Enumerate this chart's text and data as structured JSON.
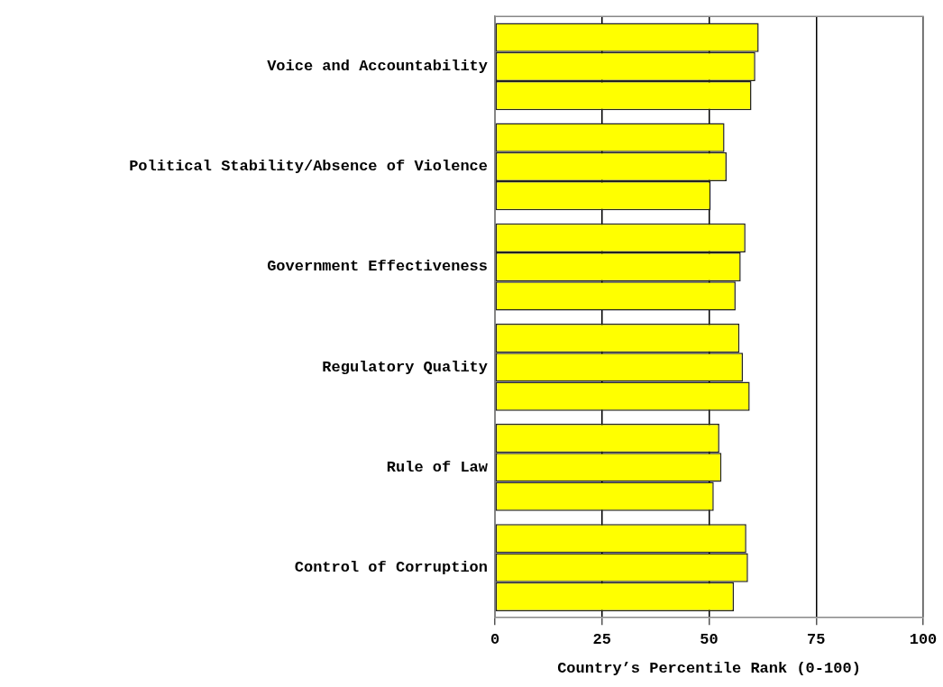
{
  "chart_data": {
    "type": "bar",
    "orientation": "horizontal",
    "xlabel": "Country’s Percentile Rank (0-100)",
    "categories": [
      "Voice and Accountability",
      "Political Stability/Absence of Violence",
      "Government Effectiveness",
      "Regulatory Quality",
      "Rule of Law",
      "Control of Corruption"
    ],
    "series": [
      {
        "color": "#ffff00",
        "values": [
          61.6,
          53.6,
          58.5,
          57.1,
          52.4,
          58.7
        ]
      },
      {
        "color": "#ffff00",
        "values": [
          60.8,
          54.1,
          57.4,
          57.9,
          52.9,
          59.1
        ]
      },
      {
        "color": "#ffff00",
        "values": [
          59.9,
          50.4,
          56.2,
          59.5,
          51.1,
          55.8
        ]
      }
    ],
    "xlim": [
      0,
      100
    ],
    "xticks": [
      0,
      25,
      50,
      75,
      100
    ],
    "grid": "x",
    "legend": false
  }
}
